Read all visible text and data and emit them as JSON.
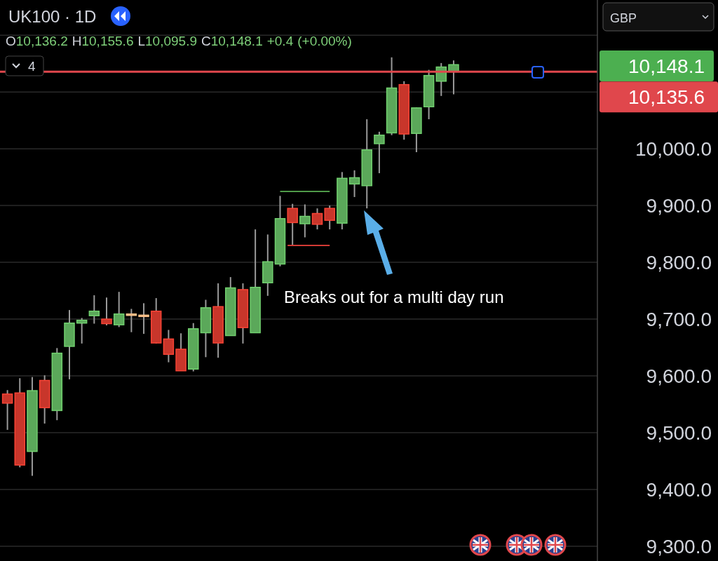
{
  "chart_data": {
    "type": "candlestick",
    "title": "UK100 · 1D",
    "subtitle": "O10,136.2 H10,155.6 L10,095.9 C10,148.1 +0.4 (+0.00%)",
    "categories": [
      null,
      null,
      null,
      null,
      null,
      null,
      null,
      null,
      null,
      null,
      null,
      null,
      null,
      null,
      null,
      null,
      null,
      null,
      null,
      null,
      null,
      null,
      null,
      null,
      null,
      null,
      null,
      null,
      null,
      null,
      null,
      null,
      null,
      null,
      null,
      null,
      null,
      null,
      null,
      null,
      null,
      null,
      null,
      null,
      null,
      null,
      null,
      null
    ],
    "ohlc": [
      [
        9568,
        9575,
        9505,
        9552
      ],
      [
        9570,
        9596,
        9439,
        9443
      ],
      [
        9467,
        9598,
        9424,
        9574
      ],
      [
        9592,
        9601,
        9516,
        9544
      ],
      [
        9539,
        9649,
        9522,
        9640
      ],
      [
        9652,
        9716,
        9594,
        9693
      ],
      [
        9693,
        9702,
        9657,
        9698
      ],
      [
        9706,
        9742,
        9692,
        9714
      ],
      [
        9700,
        9738,
        9689,
        9692
      ],
      [
        9690,
        9748,
        9686,
        9709
      ],
      [
        9709,
        9718,
        9677,
        9709
      ],
      [
        9707,
        9728,
        9674,
        9707
      ],
      [
        9714,
        9737,
        9657,
        9658
      ],
      [
        9665,
        9681,
        9624,
        9638
      ],
      [
        9647,
        9675,
        9609,
        9609
      ],
      [
        9612,
        9693,
        9608,
        9683
      ],
      [
        9676,
        9734,
        9633,
        9720
      ],
      [
        9722,
        9763,
        9632,
        9658
      ],
      [
        9671,
        9774,
        9671,
        9755
      ],
      [
        9752,
        9763,
        9657,
        9685
      ],
      [
        9676,
        9858,
        9676,
        9756
      ],
      [
        9764,
        9849,
        9741,
        9801
      ],
      [
        9797,
        9917,
        9793,
        9877
      ],
      [
        9895,
        9903,
        9830,
        9870
      ],
      [
        9868,
        9902,
        9844,
        9881
      ],
      [
        9886,
        9895,
        9858,
        9867
      ],
      [
        9895,
        9900,
        9858,
        9874
      ],
      [
        9869,
        9959,
        9858,
        9948
      ],
      [
        9938,
        9962,
        9915,
        9949
      ],
      [
        9935,
        10052,
        9895,
        9998
      ],
      [
        10009,
        10030,
        9957,
        10024
      ],
      [
        10028,
        10161,
        10024,
        10107
      ],
      [
        10113,
        10119,
        10016,
        10026
      ],
      [
        10027,
        10073,
        9994,
        10072
      ],
      [
        10074,
        10139,
        10052,
        10129
      ],
      [
        10119,
        10151,
        10093,
        10144
      ],
      [
        10136.2,
        10155.6,
        10095.9,
        10148.1
      ],
      null,
      null,
      null,
      null,
      null,
      null,
      null,
      null,
      null,
      null,
      null
    ],
    "colors": [
      "#c8362b",
      "#c8362b",
      "#5ba85a",
      "#c8362b",
      "#5ba85a",
      "#5ba85a",
      "#5ba85a",
      "#5ba85a",
      "#c8362b",
      "#5ba85a",
      "#f4a072",
      "#f4a072",
      "#c8362b",
      "#c8362b",
      "#c8362b",
      "#5ba85a",
      "#5ba85a",
      "#c8362b",
      "#5ba85a",
      "#c8362b",
      "#5ba85a",
      "#5ba85a",
      "#5ba85a",
      "#c8362b",
      "#5ba85a",
      "#c8362b",
      "#c8362b",
      "#5ba85a",
      "#5ba85a",
      "#5ba85a",
      "#5ba85a",
      "#5ba85a",
      "#c8362b",
      "#5ba85a",
      "#5ba85a",
      "#5ba85a",
      "#5ba85a",
      null,
      null,
      null,
      null,
      null,
      null,
      null,
      null,
      null,
      null,
      null
    ],
    "ylim": [
      9274,
      10262
    ],
    "yticks": [
      {
        "value": 9300,
        "label": "9,300.0"
      },
      {
        "value": 9400,
        "label": "9,400.0"
      },
      {
        "value": 9500,
        "label": "9,500.0"
      },
      {
        "value": 9600,
        "label": "9,600.0"
      },
      {
        "value": 9700,
        "label": "9,700.0"
      },
      {
        "value": 9800,
        "label": "9,800.0"
      },
      {
        "value": 9900,
        "label": "9,900.0"
      },
      {
        "value": 10000,
        "label": "10,000.0"
      },
      {
        "value": 10100,
        "label": null
      },
      {
        "value": 10200,
        "label": null
      }
    ],
    "grid": "y",
    "ref_lines": [
      {
        "axis": "y",
        "value": 10135.6,
        "label": "10,135.6",
        "color": "#e0474c"
      }
    ],
    "annotations": [
      "Breaks out for a multi day run",
      "4",
      "GBP",
      "10,148.1"
    ]
  }
}
